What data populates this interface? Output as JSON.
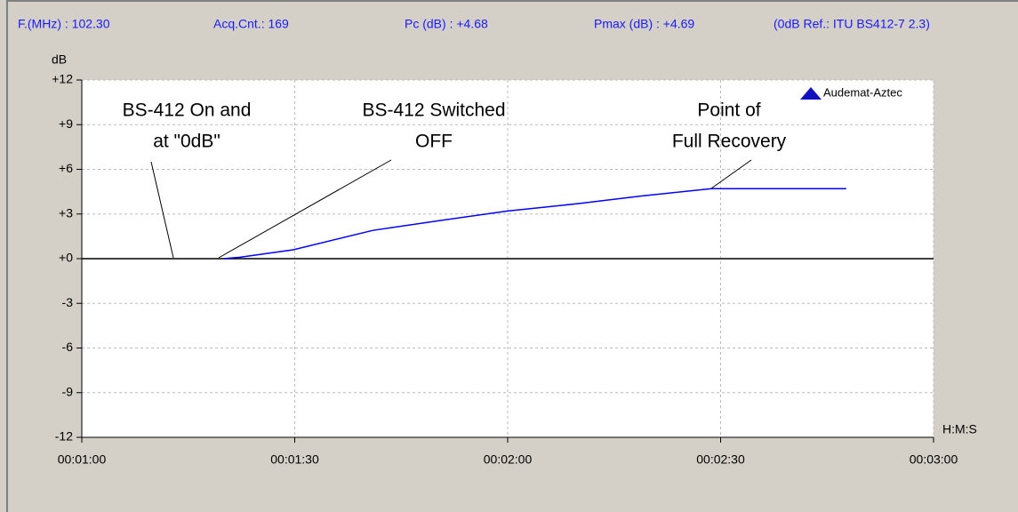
{
  "chart_data": {
    "type": "line",
    "header": [
      "F.(MHz) : 102.30",
      "Acq.Cnt.: 169",
      "Pc (dB) : +4.68",
      "Pmax (dB) : +4.69",
      "(0dB Ref.: ITU BS412-7 2.3)"
    ],
    "y_label": "dB",
    "x_label": "H:M:S",
    "logo": "Audemat-Aztec",
    "annotations": [
      {
        "text": [
          "BS-412 On and",
          "at \"0dB\""
        ]
      },
      {
        "text": [
          "BS-412 Switched",
          "OFF"
        ]
      },
      {
        "text": [
          "Point of",
          "Full Recovery"
        ]
      }
    ],
    "series": [
      {
        "color": "#0000ff",
        "x": [
          80,
          82.3,
          89.8,
          101,
          111,
          120,
          130,
          138.7,
          148.7,
          167.7
        ],
        "values": [
          0,
          0.1,
          0.6,
          1.9,
          2.6,
          3.2,
          3.7,
          4.2,
          4.7,
          4.7
        ]
      }
    ],
    "xlim": [
      60,
      180
    ],
    "xticks": [
      {
        "value": 60,
        "label": "00:01:00"
      },
      {
        "value": 90,
        "label": "00:01:30"
      },
      {
        "value": 120,
        "label": "00:02:00"
      },
      {
        "value": 150,
        "label": "00:02:30"
      },
      {
        "value": 180,
        "label": "00:03:00"
      }
    ],
    "ylim": [
      -12,
      12
    ],
    "yticks": [
      {
        "value": 12,
        "label": "+12"
      },
      {
        "value": 9,
        "label": "+9"
      },
      {
        "value": 6,
        "label": "+6"
      },
      {
        "value": 3,
        "label": "+3"
      },
      {
        "value": 0,
        "label": "+0"
      },
      {
        "value": -3,
        "label": "-3"
      },
      {
        "value": -6,
        "label": "-6"
      },
      {
        "value": -9,
        "label": "-9"
      },
      {
        "value": -12,
        "label": "-12"
      }
    ],
    "grid": true
  }
}
